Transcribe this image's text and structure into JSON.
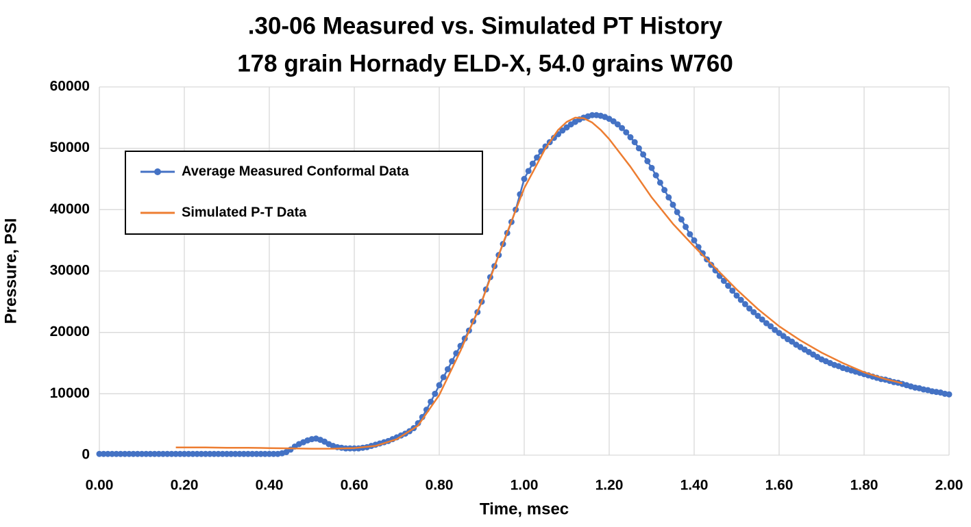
{
  "chart_data": {
    "type": "line",
    "title": ".30-06 Measured vs. Simulated PT History",
    "subtitle": "178 grain Hornady ELD-X, 54.0 grains W760",
    "x_label": "Time, msec",
    "y_label": "Pressure, PSI",
    "xlim": [
      0,
      2
    ],
    "ylim": [
      0,
      60000
    ],
    "xticks": [
      {
        "value": 0,
        "label": "0.00"
      },
      {
        "value": 0.2,
        "label": "0.20"
      },
      {
        "value": 0.4,
        "label": "0.40"
      },
      {
        "value": 0.6,
        "label": "0.60"
      },
      {
        "value": 0.8,
        "label": "0.80"
      },
      {
        "value": 1,
        "label": "1.00"
      },
      {
        "value": 1.2,
        "label": "1.20"
      },
      {
        "value": 1.4,
        "label": "1.40"
      },
      {
        "value": 1.6,
        "label": "1.60"
      },
      {
        "value": 1.8,
        "label": "1.80"
      },
      {
        "value": 2,
        "label": "2.00"
      }
    ],
    "yticks": [
      0,
      10000,
      20000,
      30000,
      40000,
      50000,
      60000
    ],
    "grid": true,
    "legend_position": "upper-left",
    "series": [
      {
        "name": "Average Measured Conformal Data",
        "color": "#4472c4",
        "markers": true,
        "x": [
          0,
          0.01,
          0.02,
          0.03,
          0.04,
          0.05,
          0.06,
          0.07,
          0.08,
          0.09,
          0.1,
          0.11,
          0.12,
          0.13,
          0.14,
          0.15,
          0.16,
          0.17,
          0.18,
          0.19,
          0.2,
          0.21,
          0.22,
          0.23,
          0.24,
          0.25,
          0.26,
          0.27,
          0.28,
          0.29,
          0.3,
          0.31,
          0.32,
          0.33,
          0.34,
          0.35,
          0.36,
          0.37,
          0.38,
          0.39,
          0.4,
          0.41,
          0.42,
          0.43,
          0.44,
          0.45,
          0.46,
          0.47,
          0.48,
          0.49,
          0.5,
          0.51,
          0.52,
          0.53,
          0.54,
          0.55,
          0.56,
          0.57,
          0.58,
          0.59,
          0.6,
          0.61,
          0.62,
          0.63,
          0.64,
          0.65,
          0.66,
          0.67,
          0.68,
          0.69,
          0.7,
          0.71,
          0.72,
          0.73,
          0.74,
          0.75,
          0.76,
          0.77,
          0.78,
          0.79,
          0.8,
          0.81,
          0.82,
          0.83,
          0.84,
          0.85,
          0.86,
          0.87,
          0.88,
          0.89,
          0.9,
          0.91,
          0.92,
          0.93,
          0.94,
          0.95,
          0.96,
          0.97,
          0.98,
          0.99,
          1,
          1.01,
          1.02,
          1.03,
          1.04,
          1.05,
          1.06,
          1.07,
          1.08,
          1.09,
          1.1,
          1.11,
          1.12,
          1.13,
          1.14,
          1.15,
          1.16,
          1.17,
          1.18,
          1.19,
          1.2,
          1.21,
          1.22,
          1.23,
          1.24,
          1.25,
          1.26,
          1.27,
          1.28,
          1.29,
          1.3,
          1.31,
          1.32,
          1.33,
          1.34,
          1.35,
          1.36,
          1.37,
          1.38,
          1.39,
          1.4,
          1.41,
          1.42,
          1.43,
          1.44,
          1.45,
          1.46,
          1.47,
          1.48,
          1.49,
          1.5,
          1.51,
          1.52,
          1.53,
          1.54,
          1.55,
          1.56,
          1.57,
          1.58,
          1.59,
          1.6,
          1.61,
          1.62,
          1.63,
          1.64,
          1.65,
          1.66,
          1.67,
          1.68,
          1.69,
          1.7,
          1.71,
          1.72,
          1.73,
          1.74,
          1.75,
          1.76,
          1.77,
          1.78,
          1.79,
          1.8,
          1.81,
          1.82,
          1.83,
          1.84,
          1.85,
          1.86,
          1.87,
          1.88,
          1.89,
          1.9,
          1.91,
          1.92,
          1.93,
          1.94,
          1.95,
          1.96,
          1.97,
          1.98,
          1.99,
          2
        ],
        "values": [
          200,
          200,
          200,
          200,
          200,
          200,
          200,
          200,
          200,
          200,
          200,
          200,
          200,
          200,
          200,
          200,
          200,
          200,
          200,
          200,
          200,
          200,
          200,
          200,
          200,
          200,
          200,
          200,
          200,
          200,
          200,
          200,
          200,
          200,
          200,
          200,
          200,
          200,
          200,
          200,
          200,
          200,
          200,
          300,
          500,
          900,
          1400,
          1800,
          2100,
          2400,
          2600,
          2700,
          2500,
          2200,
          1800,
          1500,
          1300,
          1200,
          1100,
          1100,
          1100,
          1100,
          1200,
          1300,
          1500,
          1700,
          1900,
          2100,
          2300,
          2600,
          2900,
          3200,
          3500,
          3900,
          4400,
          5200,
          6200,
          7400,
          8700,
          10000,
          11400,
          12700,
          14000,
          15300,
          16600,
          17800,
          19000,
          20300,
          21800,
          23300,
          25000,
          27000,
          29000,
          30800,
          32600,
          34400,
          36200,
          38000,
          40000,
          42500,
          45000,
          46300,
          47500,
          48500,
          49500,
          50300,
          51000,
          51700,
          52300,
          52900,
          53400,
          53900,
          54300,
          54700,
          55000,
          55200,
          55400,
          55400,
          55300,
          55100,
          54800,
          54400,
          53900,
          53300,
          52600,
          51800,
          51000,
          50000,
          49000,
          47900,
          46800,
          45600,
          44400,
          43200,
          42000,
          40800,
          39600,
          38400,
          37200,
          36000,
          35000,
          33900,
          32900,
          31900,
          31000,
          30100,
          29200,
          28400,
          27600,
          26800,
          26000,
          25300,
          24600,
          23900,
          23300,
          22700,
          22100,
          21500,
          21000,
          20400,
          19900,
          19400,
          18900,
          18500,
          18000,
          17600,
          17200,
          16800,
          16400,
          16000,
          15600,
          15300,
          15000,
          14700,
          14500,
          14200,
          14000,
          13800,
          13600,
          13400,
          13200,
          13000,
          12800,
          12600,
          12400,
          12300,
          12100,
          11900,
          11800,
          11600,
          11400,
          11200,
          11000,
          10900,
          10700,
          10600,
          10400,
          10300,
          10200,
          10000,
          9900
        ]
      },
      {
        "name": "Simulated P-T Data",
        "color": "#ed7d31",
        "markers": false,
        "x": [
          0.18,
          0.25,
          0.3,
          0.35,
          0.4,
          0.45,
          0.5,
          0.55,
          0.6,
          0.65,
          0.7,
          0.75,
          0.8,
          0.85,
          0.9,
          0.95,
          1,
          1.05,
          1.08,
          1.1,
          1.12,
          1.14,
          1.16,
          1.18,
          1.2,
          1.25,
          1.3,
          1.35,
          1.4,
          1.45,
          1.5,
          1.55,
          1.6,
          1.65,
          1.7,
          1.75,
          1.8,
          1.85,
          1.89
        ],
        "values": [
          1250,
          1250,
          1200,
          1200,
          1150,
          1100,
          1050,
          1050,
          1150,
          1500,
          2600,
          4800,
          9800,
          17000,
          25000,
          34500,
          43500,
          50000,
          53000,
          54300,
          55000,
          54900,
          54200,
          53000,
          51500,
          47000,
          42000,
          37700,
          34000,
          30500,
          27000,
          23800,
          21000,
          18700,
          16700,
          15000,
          13500,
          12400,
          11700
        ]
      }
    ]
  }
}
